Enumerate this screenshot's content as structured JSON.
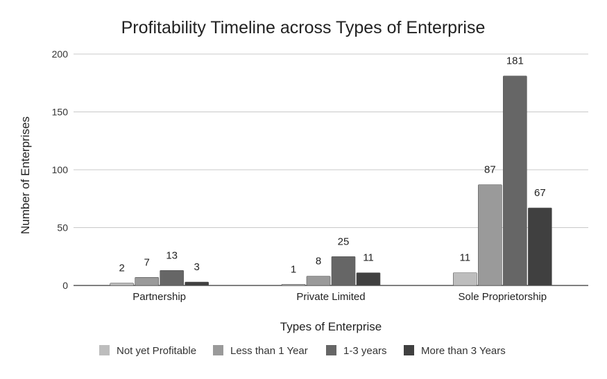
{
  "chart_data": {
    "type": "bar",
    "title": "Profitability Timeline across Types of Enterprise",
    "xlabel": "Types of Enterprise",
    "ylabel": "Number of Enterprises",
    "categories": [
      "Partnership",
      "Private Limited",
      "Sole Proprietorship"
    ],
    "series": [
      {
        "name": "Not yet Profitable",
        "values": [
          2,
          1,
          11
        ],
        "color": "#bdbdbd"
      },
      {
        "name": "Less than 1 Year",
        "values": [
          7,
          8,
          87
        ],
        "color": "#9a9a9a"
      },
      {
        "name": "1-3 years",
        "values": [
          13,
          25,
          181
        ],
        "color": "#666666"
      },
      {
        "name": "More than 3 Years",
        "values": [
          3,
          11,
          67
        ],
        "color": "#404040"
      }
    ],
    "ylim": [
      0,
      200
    ],
    "yticks": [
      0,
      50,
      100,
      150,
      200
    ],
    "grid": true,
    "legend_position": "bottom",
    "data_labels": true
  }
}
